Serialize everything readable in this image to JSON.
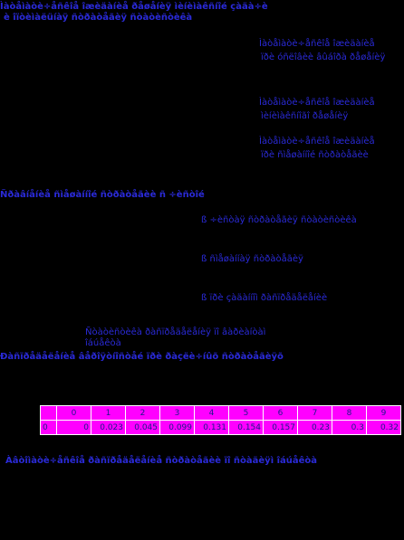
{
  "heading1": {
    "line1": "Ìàòåìàòè÷åñêîå îæèäàíèå ðåøåíèÿ ìèíèìàêñíîé çàäà÷è",
    "line2": "è îïòèìàëüíàÿ ñòðàòåãèÿ ñòàòèñòèêà"
  },
  "notes_right": [
    {
      "line1": "Ìàòåìàòè÷åñêîå îæèäàíèå",
      "line2": "ïðè óñëîâèè âûáîðà ðåøåíèÿ"
    },
    {
      "line1": "Ìàòåìàòè÷åñêîå îæèäàíèå",
      "line2": "ìèíèìàêñíîãî ðåøåíèÿ"
    },
    {
      "line1": "Ìàòåìàòè÷åñêîå îæèäàíèå",
      "line2": "ïðè ñìåøàííîé ñòðàòåãèè"
    }
  ],
  "heading2": "Ñðàâíåíèå ñìåøàííîé ñòðàòåãèè ñ ÷èñòîé",
  "notes_mid": [
    "ß ÷èñòàÿ ñòðàòåãèÿ ñòàòèñòèêà",
    "ß ñìåøàííàÿ ñòðàòåãèÿ",
    "ß ïðè çàäàííîì ðàñïðåäåëåíèè"
  ],
  "caption": {
    "line1": "Ñòàòèñòèêà ðàñïðåäåëåíèÿ ïî âàðèàíòàì",
    "line2": "îáúåêòà"
  },
  "heading3": "Ðàñïðåäåëåíèå âåðîÿòíîñòåé ïðè ðàçëè÷íûõ ñòðàòåãèÿõ",
  "table": {
    "header": [
      "",
      "0",
      "1",
      "2",
      "3",
      "4",
      "5",
      "6",
      "7",
      "8",
      "9"
    ],
    "row": [
      "0",
      "0",
      "0.023",
      "0.045",
      "0.099",
      "0.131",
      "0.154",
      "0.157",
      "0.23",
      "0.3",
      "0.32"
    ]
  },
  "footer": "Àâòîìàòè÷åñêîå ðàñïðåäåëåíèå ñòðàòåãèè ïî ñòàäèÿì îáúåêòà"
}
